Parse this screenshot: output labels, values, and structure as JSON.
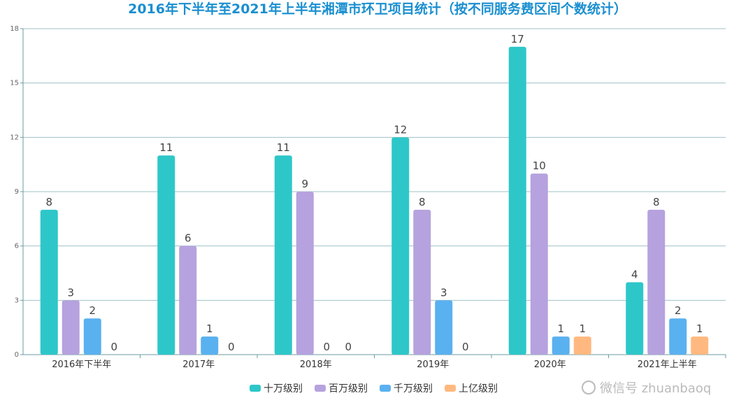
{
  "chart_data": {
    "type": "bar",
    "title": "2016年下半年至2021年上半年湘潭市环卫项目统计（按不同服务费区间个数统计）",
    "title_color": "#1a8fd0",
    "categories": [
      "2016年下半年",
      "2017年",
      "2018年",
      "2019年",
      "2020年",
      "2021年上半年"
    ],
    "series": [
      {
        "name": "十万级别",
        "color": "#2ec7c9",
        "values": [
          8,
          11,
          11,
          12,
          17,
          4
        ]
      },
      {
        "name": "百万级别",
        "color": "#b6a2de",
        "values": [
          3,
          6,
          9,
          8,
          10,
          8
        ]
      },
      {
        "name": "千万级别",
        "color": "#5ab1ef",
        "values": [
          2,
          1,
          0,
          3,
          1,
          2
        ]
      },
      {
        "name": "上亿级别",
        "color": "#ffb980",
        "values": [
          0,
          0,
          0,
          0,
          1,
          1
        ]
      }
    ],
    "ylim": [
      0,
      18
    ],
    "yticks": [
      0,
      3,
      6,
      9,
      12,
      15,
      18
    ],
    "grid": true,
    "legend": "bottom",
    "data_labels": true
  },
  "watermark": "微信号 zhuanbaoq"
}
